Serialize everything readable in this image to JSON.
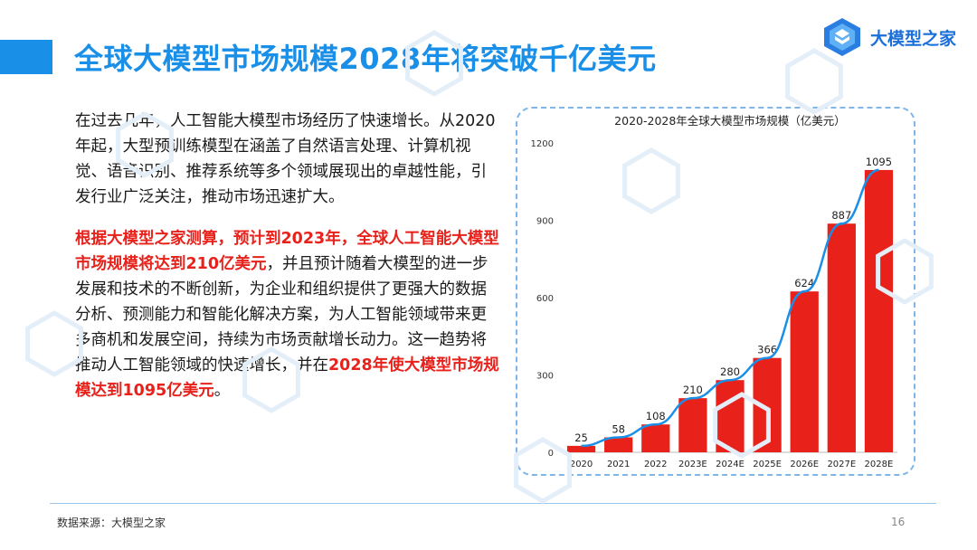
{
  "header": {
    "title": "全球大模型市场规模2028年将突破千亿美元",
    "logo_text": "大模型之家"
  },
  "body": {
    "para1": "在过去几年，人工智能大模型市场经历了快速增长。从2020年起，大型预训练模型在涵盖了自然语言处理、计算机视觉、语音识别、推荐系统等多个领域展现出的卓越性能，引发行业广泛关注，推动市场迅速扩大。",
    "para2_highlight1": "根据大模型之家测算，预计到2023年，全球人工智能大模型市场规模将达到210亿美元",
    "para2_normal": "，并且预计随着大模型的进一步发展和技术的不断创新，为企业和组织提供了更强大的数据分析、预测能力和智能化解决方案，为人工智能领域带来更多商机和发展空间，持续为市场贡献增长动力。这一趋势将推动人工智能领域的快速增长，并在",
    "para2_highlight2": "2028年使大模型市场规模达到1095亿美元",
    "para2_end": "。"
  },
  "footer": {
    "source": "数据来源：大模型之家",
    "page": "16"
  },
  "colors": {
    "title_blue": "#1a8fe8",
    "bar_red": "#e8211b",
    "trend_blue": "#1a8fe8",
    "highlight_red": "#e8211b"
  },
  "chart_data": {
    "type": "bar",
    "title": "2020-2028年全球大模型市场规模（亿美元）",
    "categories": [
      "2020",
      "2021",
      "2022",
      "2023E",
      "2024E",
      "2025E",
      "2026E",
      "2027E",
      "2028E"
    ],
    "values": [
      25,
      58,
      108,
      210,
      280,
      366,
      624,
      887,
      1095
    ],
    "ylim": [
      0,
      1200
    ],
    "yticks": [
      0,
      300,
      600,
      900,
      1200
    ],
    "trendline": true,
    "grid": false,
    "legend": "none"
  }
}
